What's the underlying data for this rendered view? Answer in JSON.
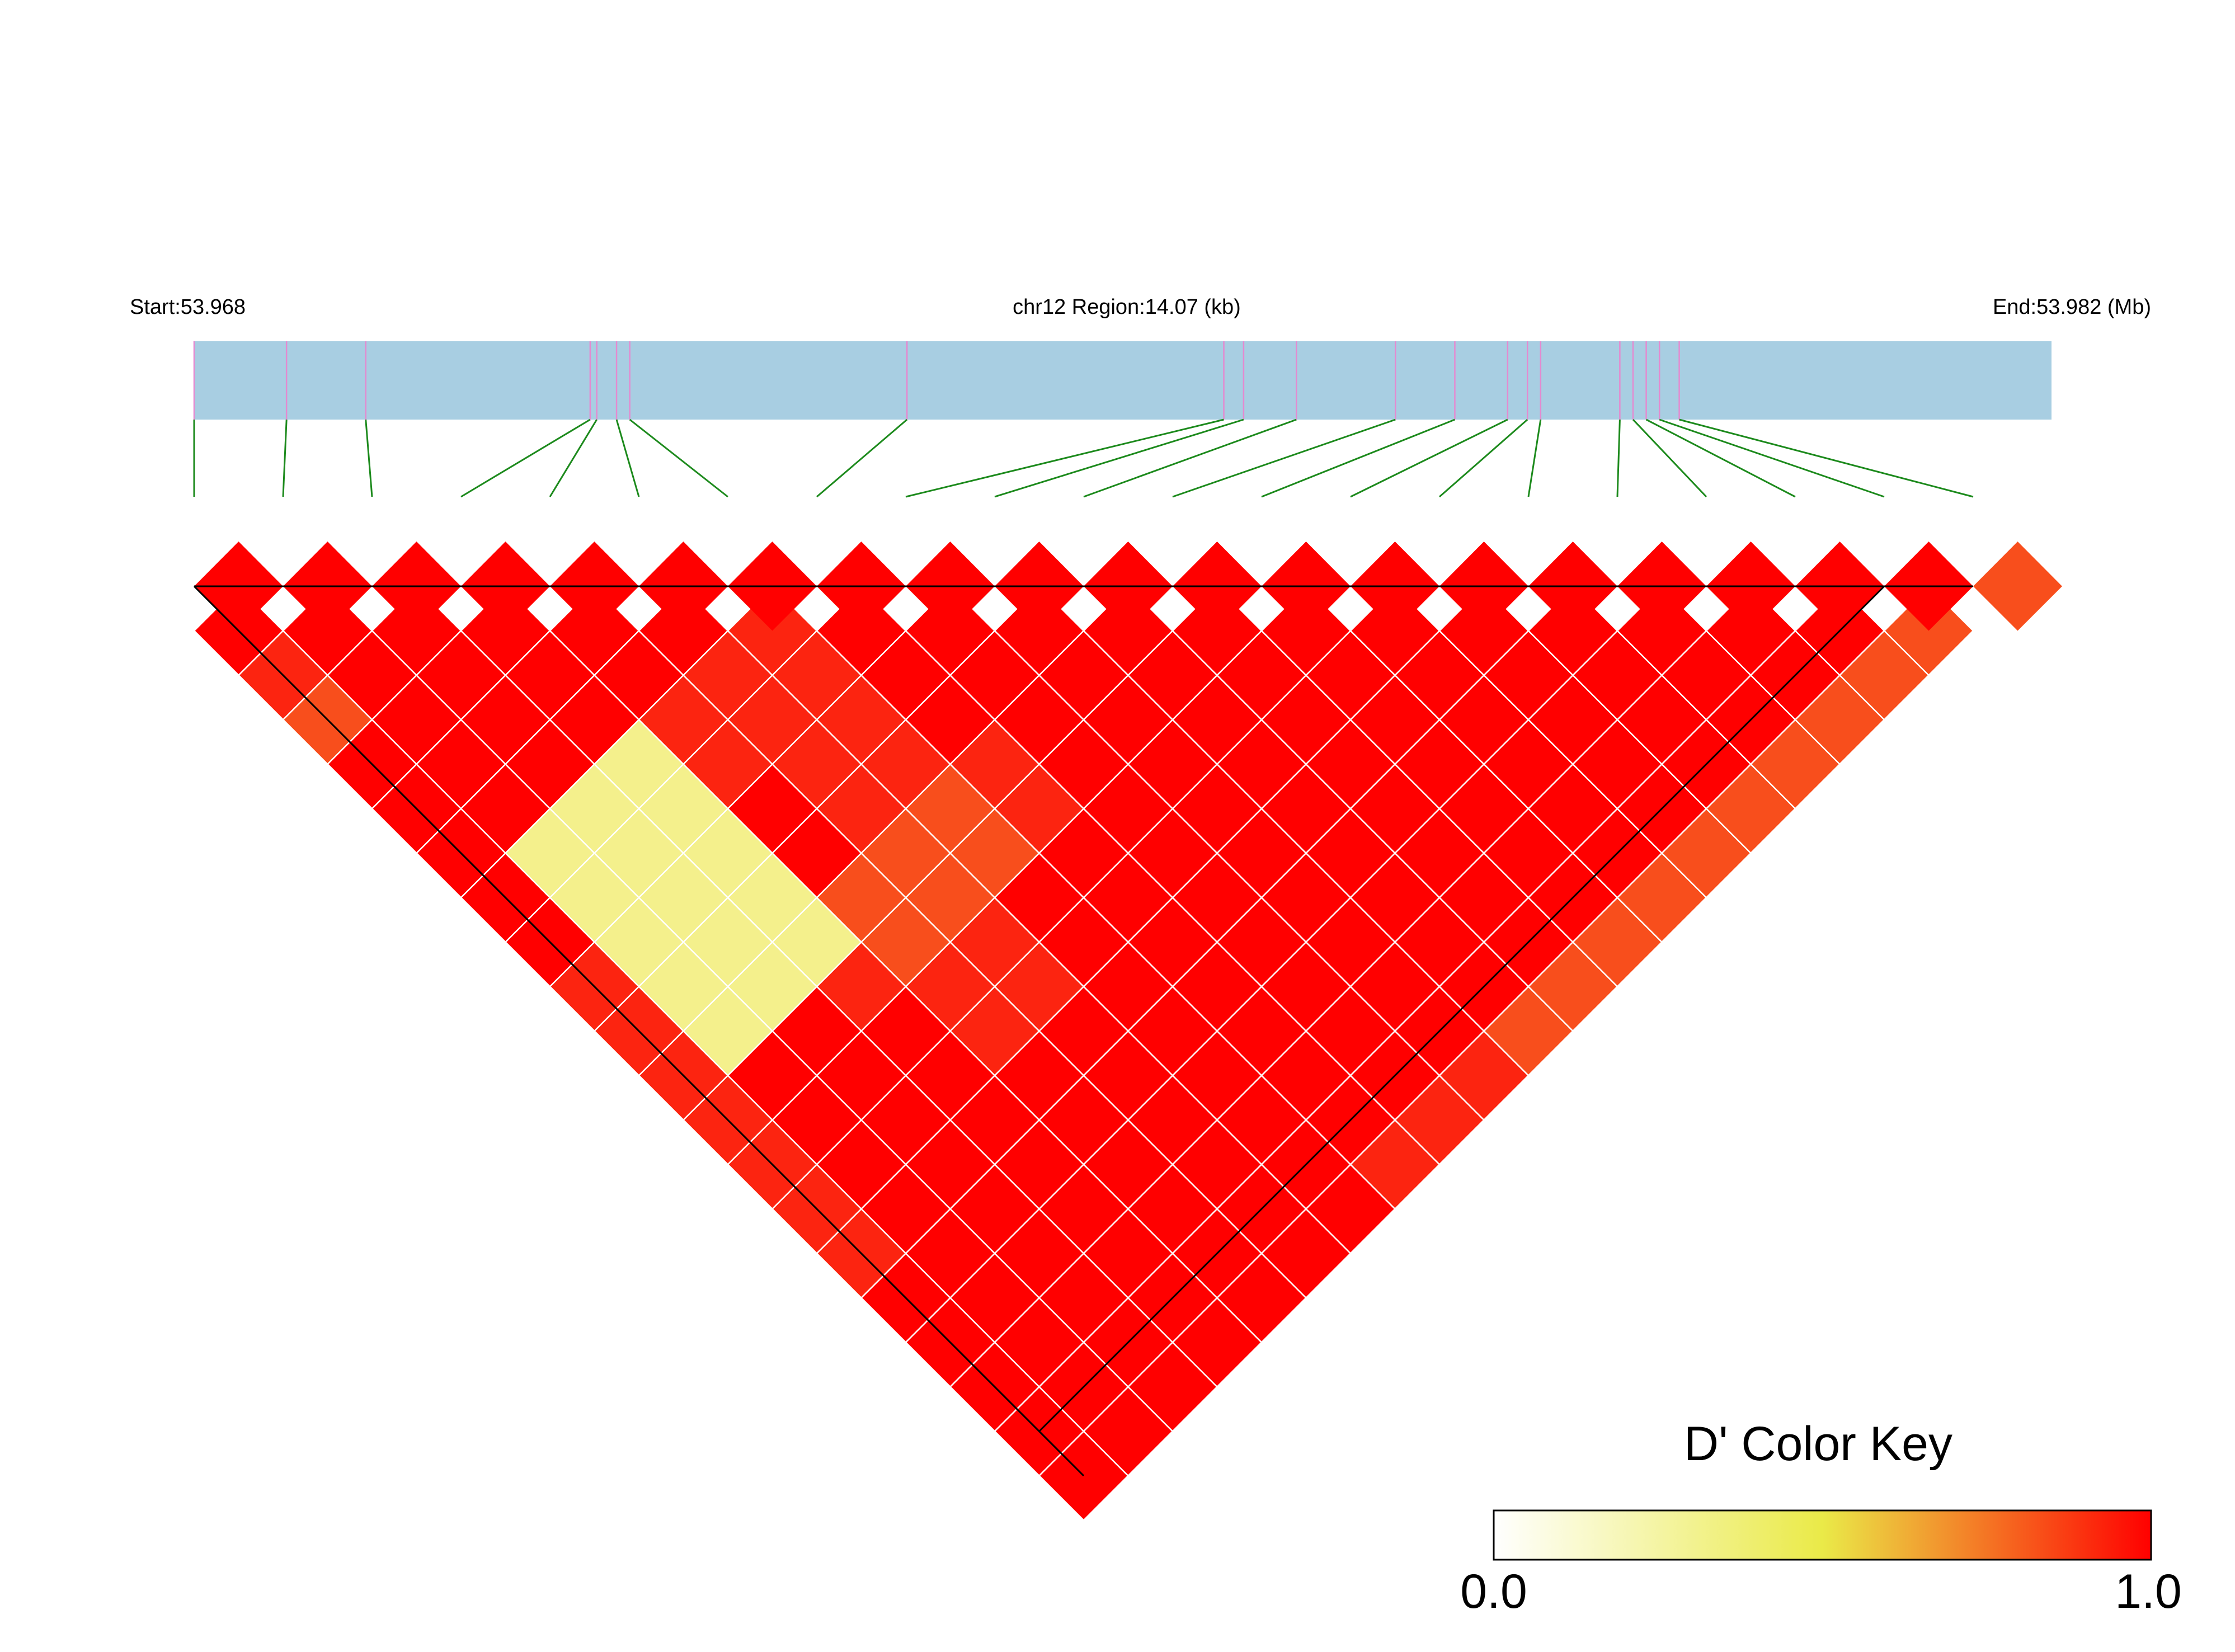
{
  "header": {
    "start_label": "Start:53.968",
    "region_label": "chr12 Region:14.07 (kb)",
    "end_label": "End:53.982 (Mb)"
  },
  "colors": {
    "region_bar": "#a8cee2",
    "snp_tick": "#e48ad0",
    "connector_line": "#1c8a1c",
    "cell_border": "#ffffff",
    "outline": "#000000"
  },
  "chart_data": {
    "type": "heatmap",
    "description_type": "LD triangle (D')",
    "region": {
      "chromosome": "chr12",
      "start_mb": 53.968,
      "end_mb": 53.982,
      "length_kb": 14.07
    },
    "snp_count": 21,
    "snp_positions_kb": [
      0.0,
      0.7,
      1.3,
      3.0,
      3.05,
      3.2,
      3.3,
      5.4,
      7.8,
      7.95,
      8.35,
      9.1,
      9.55,
      9.95,
      10.1,
      10.2,
      10.8,
      10.9,
      11.0,
      11.1,
      11.25
    ],
    "dprime_matrix": [
      [
        null,
        1.0,
        0.95,
        0.9,
        1.0,
        1.0,
        1.0,
        1.0,
        1.0,
        0.95,
        0.95,
        0.95,
        0.95,
        0.95,
        0.95,
        0.95,
        1.0,
        1.0,
        1.0,
        1.0,
        1.0
      ],
      [
        1.0,
        null,
        1.0,
        1.0,
        1.0,
        1.0,
        1.0,
        0.35,
        0.35,
        0.35,
        0.35,
        0.35,
        1.0,
        1.0,
        1.0,
        1.0,
        1.0,
        1.0,
        1.0,
        1.0,
        1.0
      ],
      [
        0.95,
        1.0,
        null,
        1.0,
        1.0,
        1.0,
        1.0,
        0.35,
        0.35,
        0.35,
        0.35,
        0.35,
        1.0,
        1.0,
        1.0,
        1.0,
        1.0,
        1.0,
        1.0,
        1.0,
        1.0
      ],
      [
        0.9,
        1.0,
        1.0,
        null,
        1.0,
        1.0,
        1.0,
        0.35,
        0.35,
        0.35,
        0.35,
        0.35,
        0.95,
        1.0,
        1.0,
        1.0,
        1.0,
        1.0,
        1.0,
        1.0,
        1.0
      ],
      [
        1.0,
        1.0,
        1.0,
        1.0,
        null,
        1.0,
        1.0,
        0.95,
        0.95,
        1.0,
        1.0,
        0.9,
        0.9,
        0.95,
        0.95,
        1.0,
        1.0,
        1.0,
        1.0,
        1.0,
        1.0
      ],
      [
        1.0,
        1.0,
        1.0,
        1.0,
        1.0,
        null,
        1.0,
        0.95,
        0.95,
        0.95,
        0.95,
        0.9,
        0.9,
        0.95,
        0.95,
        1.0,
        1.0,
        1.0,
        1.0,
        1.0,
        1.0
      ],
      [
        1.0,
        1.0,
        1.0,
        1.0,
        1.0,
        1.0,
        null,
        0.95,
        0.95,
        0.95,
        0.95,
        0.9,
        0.9,
        1.0,
        1.0,
        1.0,
        1.0,
        1.0,
        1.0,
        1.0,
        1.0
      ],
      [
        1.0,
        0.35,
        0.35,
        0.35,
        0.95,
        0.95,
        0.95,
        null,
        1.0,
        1.0,
        1.0,
        0.95,
        0.95,
        1.0,
        1.0,
        1.0,
        1.0,
        1.0,
        1.0,
        1.0,
        0.95
      ],
      [
        1.0,
        0.35,
        0.35,
        0.35,
        0.95,
        0.95,
        0.95,
        1.0,
        null,
        1.0,
        1.0,
        1.0,
        1.0,
        1.0,
        1.0,
        1.0,
        1.0,
        1.0,
        1.0,
        1.0,
        0.95
      ],
      [
        0.95,
        0.35,
        0.35,
        0.35,
        1.0,
        0.95,
        0.95,
        1.0,
        1.0,
        null,
        1.0,
        1.0,
        1.0,
        1.0,
        1.0,
        1.0,
        1.0,
        1.0,
        1.0,
        1.0,
        0.95
      ],
      [
        0.95,
        0.35,
        0.35,
        0.35,
        1.0,
        0.95,
        0.95,
        1.0,
        1.0,
        1.0,
        null,
        1.0,
        1.0,
        1.0,
        1.0,
        1.0,
        1.0,
        1.0,
        1.0,
        1.0,
        0.9
      ],
      [
        0.95,
        0.35,
        0.35,
        0.35,
        0.9,
        0.9,
        0.9,
        0.95,
        1.0,
        1.0,
        1.0,
        null,
        1.0,
        1.0,
        1.0,
        1.0,
        1.0,
        1.0,
        1.0,
        1.0,
        0.9
      ],
      [
        0.95,
        1.0,
        1.0,
        0.95,
        0.9,
        0.9,
        0.9,
        0.95,
        1.0,
        1.0,
        1.0,
        1.0,
        null,
        1.0,
        1.0,
        1.0,
        1.0,
        1.0,
        1.0,
        1.0,
        0.9
      ],
      [
        0.95,
        1.0,
        1.0,
        1.0,
        0.95,
        0.95,
        1.0,
        1.0,
        1.0,
        1.0,
        1.0,
        1.0,
        1.0,
        null,
        1.0,
        1.0,
        1.0,
        1.0,
        1.0,
        1.0,
        0.9
      ],
      [
        0.95,
        1.0,
        1.0,
        1.0,
        0.95,
        0.95,
        1.0,
        1.0,
        1.0,
        1.0,
        1.0,
        1.0,
        1.0,
        1.0,
        null,
        1.0,
        1.0,
        1.0,
        1.0,
        1.0,
        0.9
      ],
      [
        0.95,
        1.0,
        1.0,
        1.0,
        1.0,
        1.0,
        1.0,
        1.0,
        1.0,
        1.0,
        1.0,
        1.0,
        1.0,
        1.0,
        1.0,
        null,
        1.0,
        1.0,
        1.0,
        1.0,
        0.9
      ],
      [
        1.0,
        1.0,
        1.0,
        1.0,
        1.0,
        1.0,
        1.0,
        1.0,
        1.0,
        1.0,
        1.0,
        1.0,
        1.0,
        1.0,
        1.0,
        1.0,
        null,
        1.0,
        1.0,
        1.0,
        0.9
      ],
      [
        1.0,
        1.0,
        1.0,
        1.0,
        1.0,
        1.0,
        1.0,
        1.0,
        1.0,
        1.0,
        1.0,
        1.0,
        1.0,
        1.0,
        1.0,
        1.0,
        1.0,
        null,
        1.0,
        1.0,
        0.9
      ],
      [
        1.0,
        1.0,
        1.0,
        1.0,
        1.0,
        1.0,
        1.0,
        1.0,
        1.0,
        1.0,
        1.0,
        1.0,
        1.0,
        1.0,
        1.0,
        1.0,
        1.0,
        1.0,
        null,
        1.0,
        0.9
      ],
      [
        1.0,
        1.0,
        1.0,
        1.0,
        1.0,
        1.0,
        1.0,
        1.0,
        1.0,
        1.0,
        1.0,
        1.0,
        1.0,
        1.0,
        1.0,
        1.0,
        1.0,
        1.0,
        1.0,
        null,
        0.9
      ],
      [
        1.0,
        1.0,
        1.0,
        1.0,
        1.0,
        1.0,
        1.0,
        0.95,
        0.95,
        0.95,
        0.9,
        0.9,
        0.9,
        0.9,
        0.9,
        0.9,
        0.9,
        0.9,
        0.9,
        0.9,
        null
      ]
    ],
    "top_diamond_values": [
      1.0,
      1.0,
      1.0,
      1.0,
      1.0,
      1.0,
      1.0,
      1.0,
      1.0,
      1.0,
      1.0,
      1.0,
      1.0,
      1.0,
      1.0,
      1.0,
      1.0,
      1.0,
      1.0,
      1.0,
      0.9
    ],
    "color_key": {
      "title": "D' Color Key",
      "min_label": "0.0",
      "max_label": "1.0",
      "range": [
        0,
        1
      ],
      "stops": [
        "#ffffff",
        "#eaea48",
        "#ff0000"
      ]
    }
  }
}
